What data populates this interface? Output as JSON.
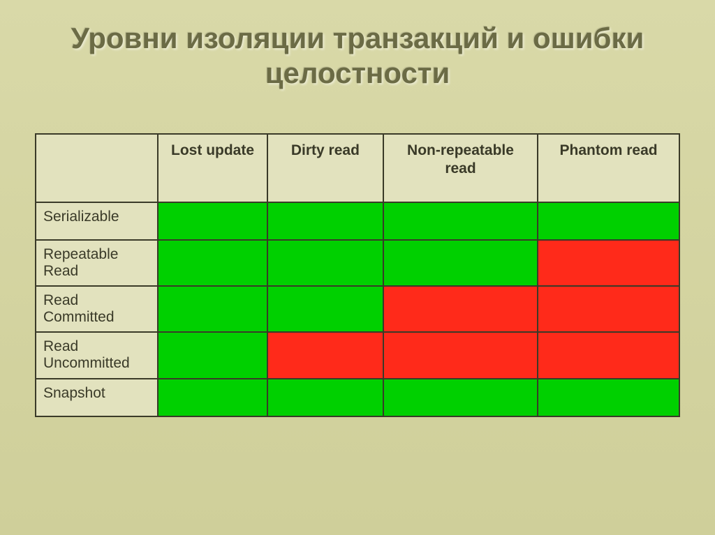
{
  "title": "Уровни изоляции транзакций и ошибки целостности",
  "table": {
    "columns": [
      "Lost update",
      "Dirty read",
      "Non-repeatable read",
      "Phantom read"
    ],
    "row_labels": [
      "Serializable",
      "Repeatable Read",
      "Read Committed",
      "Read Uncommitted",
      "Snapshot"
    ],
    "cell_colors": [
      [
        "#00d000",
        "#00d000",
        "#00d000",
        "#00d000"
      ],
      [
        "#00d000",
        "#00d000",
        "#00d000",
        "#ff2a1a"
      ],
      [
        "#00d000",
        "#00d000",
        "#ff2a1a",
        "#ff2a1a"
      ],
      [
        "#00d000",
        "#ff2a1a",
        "#ff2a1a",
        "#ff2a1a"
      ],
      [
        "#00d000",
        "#00d000",
        "#00d000",
        "#00d000"
      ]
    ],
    "header_bg": "#e2e2be",
    "rowlabel_bg": "#e2e2be",
    "border_color": "#3a3a28",
    "font_size_header": 21,
    "font_size_cell": 21
  },
  "slide_bg_top": "#d9d9a8",
  "slide_bg_bottom": "#cfcf9a",
  "title_color": "#6b6b45",
  "title_fontsize": 42
}
